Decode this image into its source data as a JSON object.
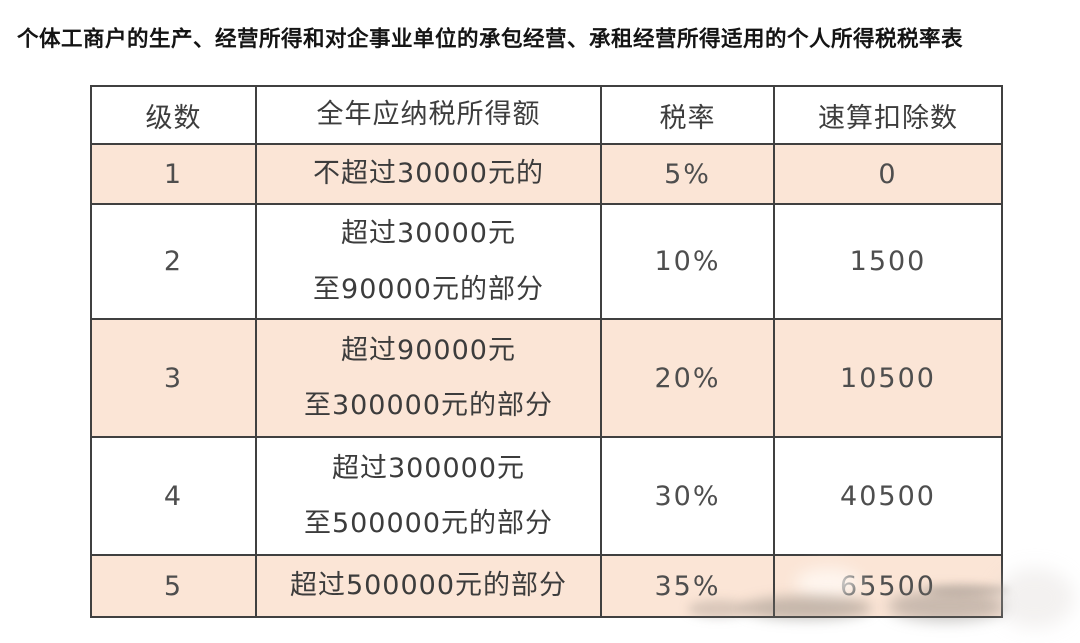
{
  "page_title": "个体工商户的生产、经营所得和对企事业单位的承包经营、承租经营所得适用的个人所得税税率表",
  "table": {
    "headers": [
      "级数",
      "全年应纳税所得额",
      "税率",
      "速算扣除数"
    ],
    "rows": [
      {
        "level": "1",
        "income": "不超过30000元的",
        "rate": "5%",
        "deduction": "0"
      },
      {
        "level": "2",
        "income": "超过30000元\n至90000元的部分",
        "rate": "10%",
        "deduction": "1500"
      },
      {
        "level": "3",
        "income": "超过90000元\n至300000元的部分",
        "rate": "20%",
        "deduction": "10500"
      },
      {
        "level": "4",
        "income": "超过300000元\n至500000元的部分",
        "rate": "30%",
        "deduction": "40500"
      },
      {
        "level": "5",
        "income": "超过500000元的部分",
        "rate": "35%",
        "deduction": "65500"
      }
    ]
  },
  "colors": {
    "row_highlight": "#fbe5d6",
    "row_plain": "#ffffff",
    "border": "#404040",
    "cell_text": "#3c3c3c",
    "title_text": "#141414",
    "page_background": "#ffffff"
  }
}
